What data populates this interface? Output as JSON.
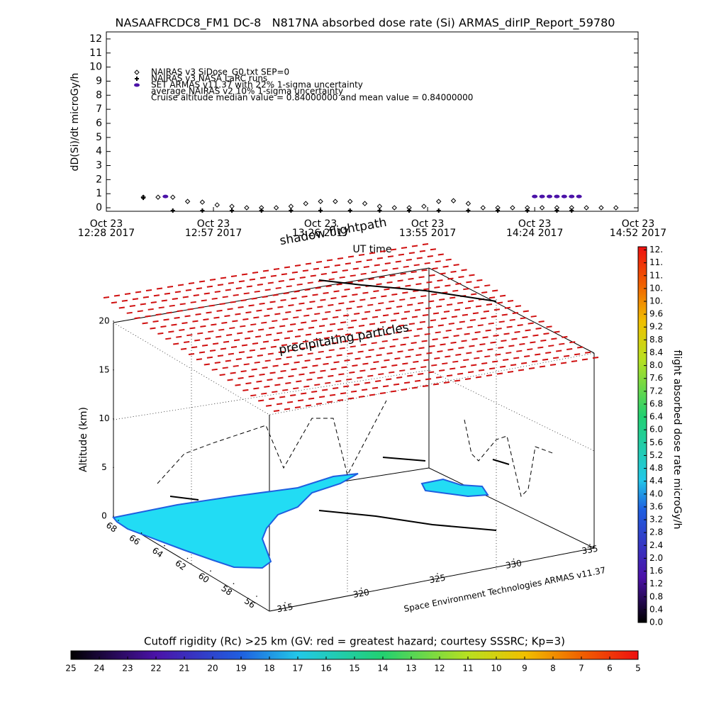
{
  "chart_data": [
    {
      "type": "scatter",
      "title": "NASAAFRCDC8_FM1 DC-8   N817NA absorbed dose rate (Si) ARMAS_dirIP_Report_59780",
      "ylabel": "dD(Si)/dt microGy/h",
      "xlabel": "UT time",
      "annotations": [
        "average NAIRAS v2 10% 1-sigma uncertainty",
        "Cruise altitude median value = 0.84000000 and mean value = 0.84000000"
      ],
      "xlim": [
        "2017-10-23 12:28",
        "2017-10-23 14:52"
      ],
      "xticks": [
        {
          "value": "2017-10-23 12:28",
          "label": [
            "Oct 23",
            "12:28 2017"
          ]
        },
        {
          "value": "2017-10-23 12:57",
          "label": [
            "Oct 23",
            "12:57 2017"
          ]
        },
        {
          "value": "2017-10-23 13:26",
          "label": [
            "Oct 23",
            "13:26 2017"
          ]
        },
        {
          "value": "2017-10-23 13:55",
          "label": [
            "Oct 23",
            "13:55 2017"
          ]
        },
        {
          "value": "2017-10-23 14:24",
          "label": [
            "Oct 23",
            "14:24 2017"
          ]
        },
        {
          "value": "2017-10-23 14:52",
          "label": [
            "Oct 23",
            "14:52 2017"
          ]
        }
      ],
      "ylim": [
        -0.25,
        12.5
      ],
      "yticks": [
        0,
        1,
        2,
        3,
        4,
        5,
        6,
        7,
        8,
        9,
        10,
        11,
        12
      ],
      "series": [
        {
          "name": "NAIRAS v3 SiDose_G0.txt SEP=0",
          "marker": "diamond",
          "color": "#000000",
          "x": [
            "2017-10-23 12:38",
            "2017-10-23 12:42",
            "2017-10-23 12:46",
            "2017-10-23 12:50",
            "2017-10-23 12:54",
            "2017-10-23 12:58",
            "2017-10-23 13:02",
            "2017-10-23 13:06",
            "2017-10-23 13:10",
            "2017-10-23 13:14",
            "2017-10-23 13:18",
            "2017-10-23 13:22",
            "2017-10-23 13:26",
            "2017-10-23 13:30",
            "2017-10-23 13:34",
            "2017-10-23 13:38",
            "2017-10-23 13:42",
            "2017-10-23 13:46",
            "2017-10-23 13:50",
            "2017-10-23 13:54",
            "2017-10-23 13:58",
            "2017-10-23 14:02",
            "2017-10-23 14:06",
            "2017-10-23 14:10",
            "2017-10-23 14:14",
            "2017-10-23 14:18",
            "2017-10-23 14:22",
            "2017-10-23 14:26",
            "2017-10-23 14:30",
            "2017-10-23 14:34",
            "2017-10-23 14:38",
            "2017-10-23 14:42",
            "2017-10-23 14:46"
          ],
          "values": [
            0.75,
            0.75,
            0.75,
            0.45,
            0.4,
            0.2,
            0.1,
            0,
            0,
            0,
            0.1,
            0.3,
            0.45,
            0.45,
            0.45,
            0.3,
            0.1,
            0,
            0,
            0.1,
            0.45,
            0.5,
            0.3,
            0,
            0,
            0,
            0,
            0,
            0,
            0,
            0,
            0,
            0
          ]
        },
        {
          "name": "NAIRAS v3 NASA LaRC runs",
          "marker": "plus",
          "color": "#000000",
          "x": [
            "2017-10-23 12:38",
            "2017-10-23 12:46",
            "2017-10-23 12:54",
            "2017-10-23 13:02",
            "2017-10-23 13:10",
            "2017-10-23 13:18",
            "2017-10-23 13:26",
            "2017-10-23 13:34",
            "2017-10-23 13:42",
            "2017-10-23 13:50",
            "2017-10-23 13:58",
            "2017-10-23 14:06",
            "2017-10-23 14:14",
            "2017-10-23 14:22",
            "2017-10-23 14:30",
            "2017-10-23 14:34"
          ],
          "values": [
            0.7,
            -0.2,
            -0.2,
            -0.2,
            -0.2,
            -0.2,
            -0.2,
            -0.2,
            -0.2,
            -0.2,
            -0.2,
            -0.2,
            -0.2,
            -0.2,
            -0.2,
            -0.2
          ]
        },
        {
          "name": "SET ARMAS v11.37 with 22% 1-sigma uncertainty",
          "marker": "dot",
          "color": "#4b12a8",
          "x": [
            "2017-10-23 12:44",
            "2017-10-23 14:24",
            "2017-10-23 14:26",
            "2017-10-23 14:28",
            "2017-10-23 14:30",
            "2017-10-23 14:32",
            "2017-10-23 14:34",
            "2017-10-23 14:36"
          ],
          "values": [
            0.8,
            0.8,
            0.8,
            0.8,
            0.8,
            0.8,
            0.8,
            0.8
          ]
        }
      ]
    },
    {
      "type": "surface3d",
      "zlabel": "Altitude (km)",
      "zlim": [
        0,
        20
      ],
      "zticks": [
        0,
        5,
        10,
        15,
        20
      ],
      "ylim": [
        68,
        56
      ],
      "yticks": [
        68,
        66,
        64,
        62,
        60,
        58,
        56
      ],
      "xlim": [
        315,
        335
      ],
      "xticks": [
        315,
        320,
        325,
        330,
        335
      ],
      "annotations": [
        "shadow flightpath",
        "precipitating particles",
        "Space Environment Technologies ARMAS v11.37"
      ],
      "colorbar": {
        "label": "flight absorbed dose rate microGy/h",
        "clim": [
          0,
          11.7
        ],
        "ticks": [
          {
            "value": 11.6,
            "label": "12."
          },
          {
            "value": 11.2,
            "label": "11."
          },
          {
            "value": 10.8,
            "label": "11."
          },
          {
            "value": 10.4,
            "label": "10."
          },
          {
            "value": 10.0,
            "label": "10."
          },
          9.6,
          9.2,
          8.8,
          8.4,
          {
            "value": 8.0,
            "label": "8.0"
          },
          7.6,
          7.2,
          6.8,
          6.4,
          {
            "value": 6.0,
            "label": "6.0"
          },
          5.6,
          5.2,
          4.8,
          4.4,
          {
            "value": 4.0,
            "label": "4.0"
          },
          3.6,
          3.2,
          2.8,
          2.4,
          {
            "value": 2.0,
            "label": "2.0"
          },
          1.6,
          1.2,
          0.8,
          0.4,
          {
            "value": 0.0,
            "label": "0.0"
          }
        ]
      },
      "rigidity_colorbar": {
        "title": "Cutoff rigidity (Rc) >25 km (GV: red = greatest hazard; courtesy SSSRC; Kp=3)",
        "clim": [
          25,
          5
        ],
        "ticks": [
          25,
          24,
          23,
          22,
          21,
          20,
          19,
          18,
          17,
          16,
          15,
          14,
          13,
          12,
          11,
          10,
          9,
          8,
          7,
          6,
          5
        ]
      }
    }
  ]
}
